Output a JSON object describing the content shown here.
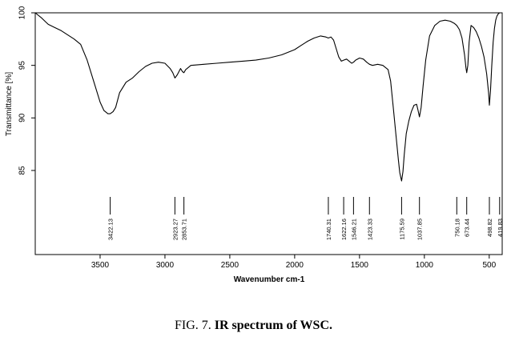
{
  "chart_data": {
    "type": "line",
    "title": "",
    "xlabel": "Wavenumber cm-1",
    "ylabel": "Transmittance [%]",
    "xlim": [
      4000,
      400
    ],
    "ylim": [
      77,
      100
    ],
    "x_reversed": true,
    "grid": false,
    "x_ticks": [
      3500,
      3000,
      2500,
      2000,
      1500,
      1000,
      500
    ],
    "y_ticks": [
      100,
      95,
      90,
      85
    ],
    "line_color": "#000000",
    "series": [
      {
        "x": [
          4000,
          3950,
          3900,
          3850,
          3800,
          3750,
          3700,
          3650,
          3600,
          3550,
          3500,
          3470,
          3440,
          3422.13,
          3400,
          3380,
          3350,
          3300,
          3250,
          3200,
          3150,
          3100,
          3050,
          3000,
          2960,
          2940,
          2923.27,
          2905,
          2880,
          2865,
          2853.71,
          2840,
          2800,
          2700,
          2600,
          2500,
          2400,
          2300,
          2200,
          2100,
          2000,
          1950,
          1900,
          1850,
          1800,
          1760,
          1740.31,
          1720,
          1700,
          1680,
          1660,
          1640,
          1622.16,
          1600,
          1580,
          1560,
          1546.21,
          1530,
          1500,
          1470,
          1445,
          1423.33,
          1400,
          1360,
          1320,
          1280,
          1260,
          1240,
          1220,
          1200,
          1190,
          1175.59,
          1165,
          1155,
          1140,
          1120,
          1100,
          1080,
          1060,
          1050,
          1037.85,
          1025,
          1010,
          990,
          960,
          920,
          880,
          840,
          800,
          770,
          750.18,
          730,
          710,
          690,
          680,
          673.44,
          665,
          655,
          640,
          620,
          600,
          580,
          560,
          540,
          520,
          505,
          498.82,
          490,
          480,
          470,
          460,
          450,
          440,
          430,
          419.83,
          410
        ],
        "y": [
          100,
          99.5,
          98.9,
          98.6,
          98.3,
          97.9,
          97.5,
          97.0,
          95.5,
          93.5,
          91.5,
          90.7,
          90.4,
          90.4,
          90.6,
          91.0,
          92.4,
          93.4,
          93.8,
          94.4,
          94.9,
          95.2,
          95.3,
          95.2,
          94.7,
          94.3,
          93.8,
          94.1,
          94.7,
          94.4,
          94.3,
          94.6,
          95.0,
          95.1,
          95.2,
          95.3,
          95.4,
          95.5,
          95.7,
          96.0,
          96.5,
          96.9,
          97.3,
          97.6,
          97.8,
          97.7,
          97.6,
          97.7,
          97.4,
          96.6,
          95.8,
          95.4,
          95.5,
          95.6,
          95.4,
          95.2,
          95.3,
          95.5,
          95.7,
          95.6,
          95.3,
          95.1,
          95.0,
          95.1,
          95.0,
          94.6,
          93.5,
          91.0,
          88.5,
          86.0,
          84.8,
          84.0,
          84.9,
          86.5,
          88.5,
          89.7,
          90.6,
          91.2,
          91.3,
          90.8,
          90.1,
          91.0,
          93.0,
          95.5,
          97.8,
          98.8,
          99.2,
          99.3,
          99.2,
          99.0,
          98.8,
          98.4,
          97.6,
          96.0,
          94.8,
          94.3,
          95.0,
          97.2,
          98.8,
          98.6,
          98.2,
          97.6,
          96.8,
          95.8,
          94.2,
          92.4,
          91.2,
          92.6,
          95.0,
          97.2,
          98.5,
          99.3,
          99.7,
          99.9,
          100,
          100
        ]
      }
    ],
    "peak_labels": [
      "3422.13",
      "2923.27",
      "2853.71",
      "1740.31",
      "1622.16",
      "1546.21",
      "1423.33",
      "1175.59",
      "1037.85",
      "750.18",
      "673.44",
      "498.82",
      "419.83"
    ],
    "peak_positions": [
      3422.13,
      2923.27,
      2853.71,
      1740.31,
      1622.16,
      1546.21,
      1423.33,
      1175.59,
      1037.85,
      750.18,
      673.44,
      498.82,
      419.83
    ]
  },
  "caption": {
    "prefix": "FIG. 7. ",
    "bold_text": "IR spectrum of WSC."
  }
}
